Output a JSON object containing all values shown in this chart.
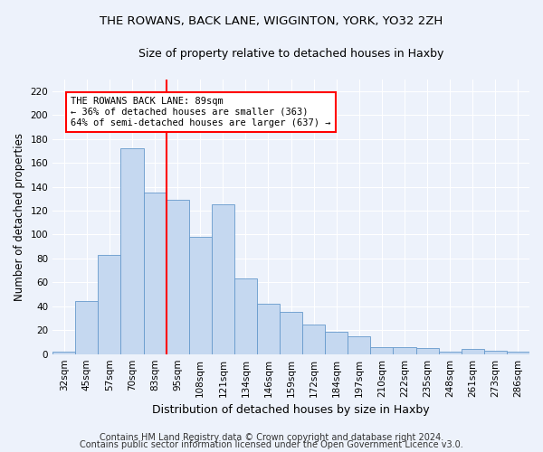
{
  "title1": "THE ROWANS, BACK LANE, WIGGINTON, YORK, YO32 2ZH",
  "title2": "Size of property relative to detached houses in Haxby",
  "xlabel": "Distribution of detached houses by size in Haxby",
  "ylabel": "Number of detached properties",
  "categories": [
    "32sqm",
    "45sqm",
    "57sqm",
    "70sqm",
    "83sqm",
    "95sqm",
    "108sqm",
    "121sqm",
    "134sqm",
    "146sqm",
    "159sqm",
    "172sqm",
    "184sqm",
    "197sqm",
    "210sqm",
    "222sqm",
    "235sqm",
    "248sqm",
    "261sqm",
    "273sqm",
    "286sqm"
  ],
  "values": [
    2,
    44,
    83,
    172,
    135,
    129,
    98,
    125,
    63,
    42,
    35,
    25,
    19,
    15,
    6,
    6,
    5,
    2,
    4,
    3,
    2
  ],
  "bar_color": "#c5d8f0",
  "bar_edge_color": "#6699cc",
  "vline_color": "red",
  "vline_x": 4.5,
  "annotation_text": "THE ROWANS BACK LANE: 89sqm\n← 36% of detached houses are smaller (363)\n64% of semi-detached houses are larger (637) →",
  "annotation_box_color": "white",
  "annotation_box_edge_color": "red",
  "ylim": [
    0,
    230
  ],
  "yticks": [
    0,
    20,
    40,
    60,
    80,
    100,
    120,
    140,
    160,
    180,
    200,
    220
  ],
  "footer1": "Contains HM Land Registry data © Crown copyright and database right 2024.",
  "footer2": "Contains public sector information licensed under the Open Government Licence v3.0.",
  "bg_color": "#edf2fb",
  "grid_color": "#ffffff",
  "title1_fontsize": 9.5,
  "title2_fontsize": 9,
  "ylabel_fontsize": 8.5,
  "xlabel_fontsize": 9,
  "tick_fontsize": 7.5,
  "annotation_fontsize": 7.5,
  "footer_fontsize": 7
}
